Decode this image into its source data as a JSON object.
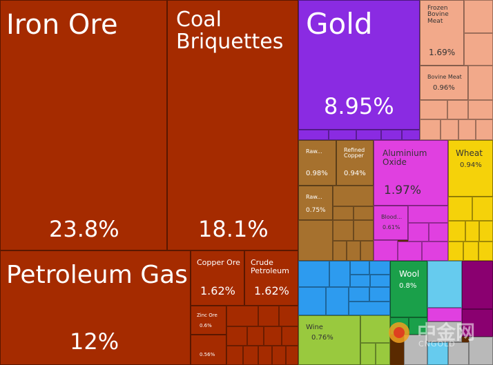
{
  "chart_data": {
    "type": "treemap",
    "unit": "%",
    "title": "",
    "colors": {
      "minerals": "#a52b00",
      "gold": "#8a2be2",
      "meat": "#f2a98a",
      "metals": "#a6712e",
      "chemicals": "#e040e0",
      "vegetable": "#f5d20a",
      "machinery": "#2d9bef",
      "animal": "#1aa04a",
      "foodstuffs": "#99c93e",
      "instruments": "#66cbee",
      "misc": "#8a0070"
    },
    "items": [
      {
        "name": "Iron Ore",
        "value": 23.8,
        "value_label": "23.8%",
        "group": "minerals"
      },
      {
        "name": "Coal Briquettes",
        "value": 18.1,
        "value_label": "18.1%",
        "group": "minerals"
      },
      {
        "name": "Petroleum Gas",
        "value": 12,
        "value_label": "12%",
        "group": "minerals"
      },
      {
        "name": "Copper Ore",
        "value": 1.62,
        "value_label": "1.62%",
        "group": "minerals"
      },
      {
        "name": "Crude Petroleum",
        "value": 1.62,
        "value_label": "1.62%",
        "group": "minerals"
      },
      {
        "name": "Zinc Ore",
        "value": 0.6,
        "value_label": "0.6%",
        "group": "minerals"
      },
      {
        "name": "",
        "value": 0.56,
        "value_label": "0.56%",
        "group": "minerals"
      },
      {
        "name": "Gold",
        "value": 8.95,
        "value_label": "8.95%",
        "group": "gold"
      },
      {
        "name": "Frozen Bovine Meat",
        "value": 1.69,
        "value_label": "1.69%",
        "group": "meat"
      },
      {
        "name": "Bovine Meat",
        "value": 0.96,
        "value_label": "0.96%",
        "group": "meat"
      },
      {
        "name": "Raw...",
        "value": 0.98,
        "value_label": "0.98%",
        "group": "metals"
      },
      {
        "name": "Refined Copper",
        "value": 0.94,
        "value_label": "0.94%",
        "group": "metals"
      },
      {
        "name": "Raw...",
        "value": 0.75,
        "value_label": "0.75%",
        "group": "metals"
      },
      {
        "name": "Aluminium Oxide",
        "value": 1.97,
        "value_label": "1.97%",
        "group": "chemicals"
      },
      {
        "name": "Blood...",
        "value": 0.61,
        "value_label": "0.61%",
        "group": "chemicals"
      },
      {
        "name": "Wheat",
        "value": 0.94,
        "value_label": "0.94%",
        "group": "vegetable"
      },
      {
        "name": "Wool",
        "value": 0.8,
        "value_label": "0.8%",
        "group": "animal"
      },
      {
        "name": "Wine",
        "value": 0.76,
        "value_label": "0.76%",
        "group": "foodstuffs"
      }
    ]
  },
  "watermark": {
    "text": "中金网",
    "sub": "CNGOLD"
  }
}
